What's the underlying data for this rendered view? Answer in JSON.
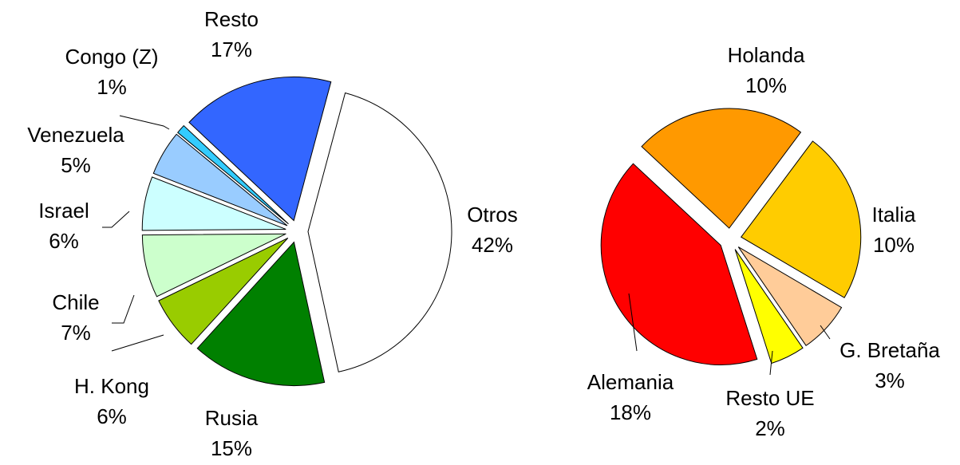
{
  "chart_data": [
    {
      "type": "pie",
      "categories": [
        "Otros",
        "Rusia",
        "H. Kong",
        "Chile",
        "Israel",
        "Venezuela",
        "Congo (Z)",
        "Resto"
      ],
      "values": [
        42,
        15,
        6,
        7,
        6,
        5,
        1,
        17
      ],
      "value_labels": [
        "42%",
        "15%",
        "6%",
        "7%",
        "6%",
        "5%",
        "1%",
        "17%"
      ],
      "colors": [
        "#ffffff",
        "#008000",
        "#99cc00",
        "#ccffcc",
        "#ccffff",
        "#99ccff",
        "#33ccff",
        "#3366ff"
      ]
    },
    {
      "type": "pie",
      "categories": [
        "Holanda",
        "Italia",
        "G. Bretaña",
        "Resto UE",
        "Alemania"
      ],
      "values": [
        10,
        10,
        3,
        2,
        18
      ],
      "value_labels": [
        "10%",
        "10%",
        "3%",
        "2%",
        "18%"
      ],
      "colors": [
        "#ff9900",
        "#ffcc00",
        "#ffcc99",
        "#ffff00",
        "#ff0000"
      ]
    }
  ]
}
